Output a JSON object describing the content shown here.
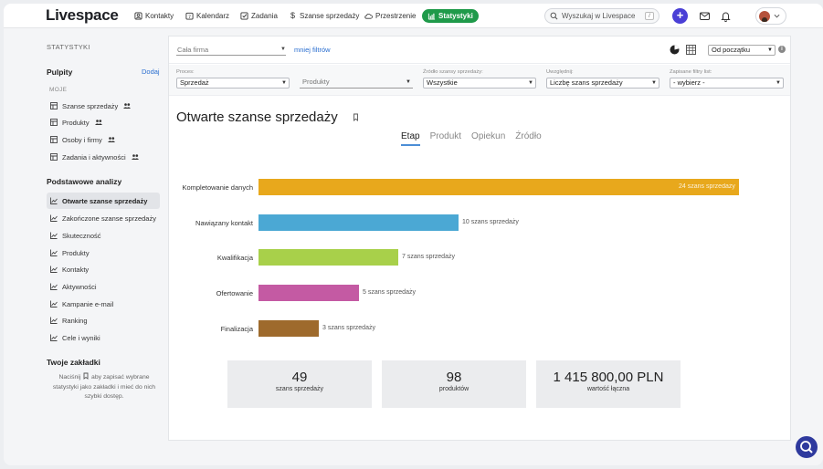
{
  "app": {
    "logo": "Livespace"
  },
  "topnav": {
    "items": [
      {
        "label": "Kontakty",
        "icon": "contacts-icon"
      },
      {
        "label": "Kalendarz",
        "icon": "calendar-icon"
      },
      {
        "label": "Zadania",
        "icon": "tasks-icon"
      },
      {
        "label": "Szanse sprzedaży",
        "icon": "dollar-icon"
      },
      {
        "label": "Przestrzenie",
        "icon": "cloud-icon"
      },
      {
        "label": "Statystyki",
        "icon": "stats-icon",
        "active": true
      }
    ],
    "search_placeholder": "Wyszukaj w Livespace",
    "search_shortcut": "/",
    "add_label": "+"
  },
  "sidebar": {
    "header": "STATYSTYKI",
    "dashboards_title": "Pulpity",
    "add_label": "Dodaj",
    "mine_label": "MOJE",
    "dashboards": [
      {
        "label": "Szanse sprzedaży"
      },
      {
        "label": "Produkty"
      },
      {
        "label": "Osoby i firmy"
      },
      {
        "label": "Zadania i aktywności"
      }
    ],
    "analyses_title": "Podstawowe analizy",
    "analyses": [
      {
        "label": "Otwarte szanse sprzedaży",
        "active": true
      },
      {
        "label": "Zakończone szanse sprzedaży"
      },
      {
        "label": "Skuteczność"
      },
      {
        "label": "Produkty"
      },
      {
        "label": "Kontakty"
      },
      {
        "label": "Aktywności"
      },
      {
        "label": "Kampanie e-mail"
      },
      {
        "label": "Ranking"
      },
      {
        "label": "Cele i wyniki"
      }
    ],
    "bookmarks_title": "Twoje zakładki",
    "bookmarks_note_prefix": "Naciśnij",
    "bookmarks_note_suffix": "aby zapisać wybrane statystyki jako zakładki i mieć do nich szybki dostęp."
  },
  "toolbar": {
    "company_value": "Cała firma",
    "less_filters": "mniej filtrów",
    "period_value": "Od początku",
    "info": "i"
  },
  "filters": {
    "process_label": "Proces:",
    "process_value": "Sprzedaż",
    "products_placeholder": "Produkty",
    "source_label": "Źródło szansy sprzedaży:",
    "source_value": "Wszystkie",
    "consider_label": "Uwzględnij:",
    "consider_value": "Liczbę szans sprzedaży",
    "saved_label": "Zapisane filtry list:",
    "saved_value": "- wybierz -"
  },
  "page": {
    "title": "Otwarte szanse sprzedaży"
  },
  "tabs": [
    {
      "label": "Etap",
      "active": true
    },
    {
      "label": "Produkt"
    },
    {
      "label": "Opiekun"
    },
    {
      "label": "Źródło"
    }
  ],
  "chart_data": {
    "type": "bar",
    "orientation": "horizontal",
    "categories": [
      "Kompletowanie danych",
      "Nawiązany kontakt",
      "Kwalifikacja",
      "Ofertowanie",
      "Finalizacja"
    ],
    "values": [
      24,
      10,
      7,
      5,
      3
    ],
    "value_labels": [
      "24 szans sprzedaży",
      "10 szans sprzedaży",
      "7 szans sprzedaży",
      "5 szans sprzedaży",
      "3 szans sprzedaży"
    ],
    "colors": [
      "#e8a81c",
      "#4ba8d4",
      "#a8d04a",
      "#c45aa3",
      "#9e6a2c"
    ],
    "xlim": [
      0,
      24
    ],
    "grid": false
  },
  "stats": [
    {
      "value": "49",
      "label": "szans sprzedaży"
    },
    {
      "value": "98",
      "label": "produktów"
    },
    {
      "value": "1 415 800,00 PLN",
      "label": "wartość łączna"
    }
  ]
}
